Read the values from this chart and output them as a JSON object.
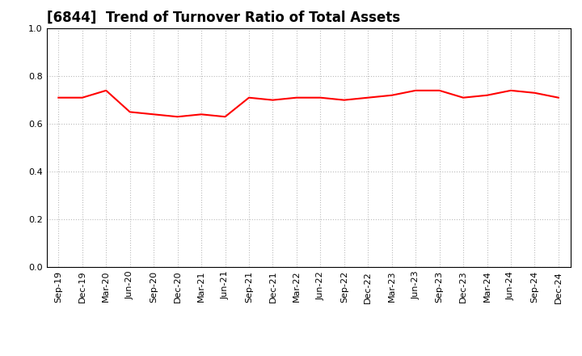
{
  "title": "[6844]  Trend of Turnover Ratio of Total Assets",
  "x_labels": [
    "Sep-19",
    "Dec-19",
    "Mar-20",
    "Jun-20",
    "Sep-20",
    "Dec-20",
    "Mar-21",
    "Jun-21",
    "Sep-21",
    "Dec-21",
    "Mar-22",
    "Jun-22",
    "Sep-22",
    "Dec-22",
    "Mar-23",
    "Jun-23",
    "Sep-23",
    "Dec-23",
    "Mar-24",
    "Jun-24",
    "Sep-24",
    "Dec-24"
  ],
  "y_values": [
    0.71,
    0.71,
    0.74,
    0.65,
    0.64,
    0.63,
    0.64,
    0.63,
    0.71,
    0.7,
    0.71,
    0.71,
    0.7,
    0.71,
    0.72,
    0.74,
    0.74,
    0.71,
    0.72,
    0.74,
    0.73,
    0.71
  ],
  "line_color": "#ff0000",
  "line_width": 1.5,
  "ylim": [
    0.0,
    1.0
  ],
  "yticks": [
    0.0,
    0.2,
    0.4,
    0.6,
    0.8,
    1.0
  ],
  "grid_color": "#bbbbbb",
  "grid_linestyle": ":",
  "bg_color": "#ffffff",
  "title_fontsize": 12,
  "tick_fontsize": 8
}
